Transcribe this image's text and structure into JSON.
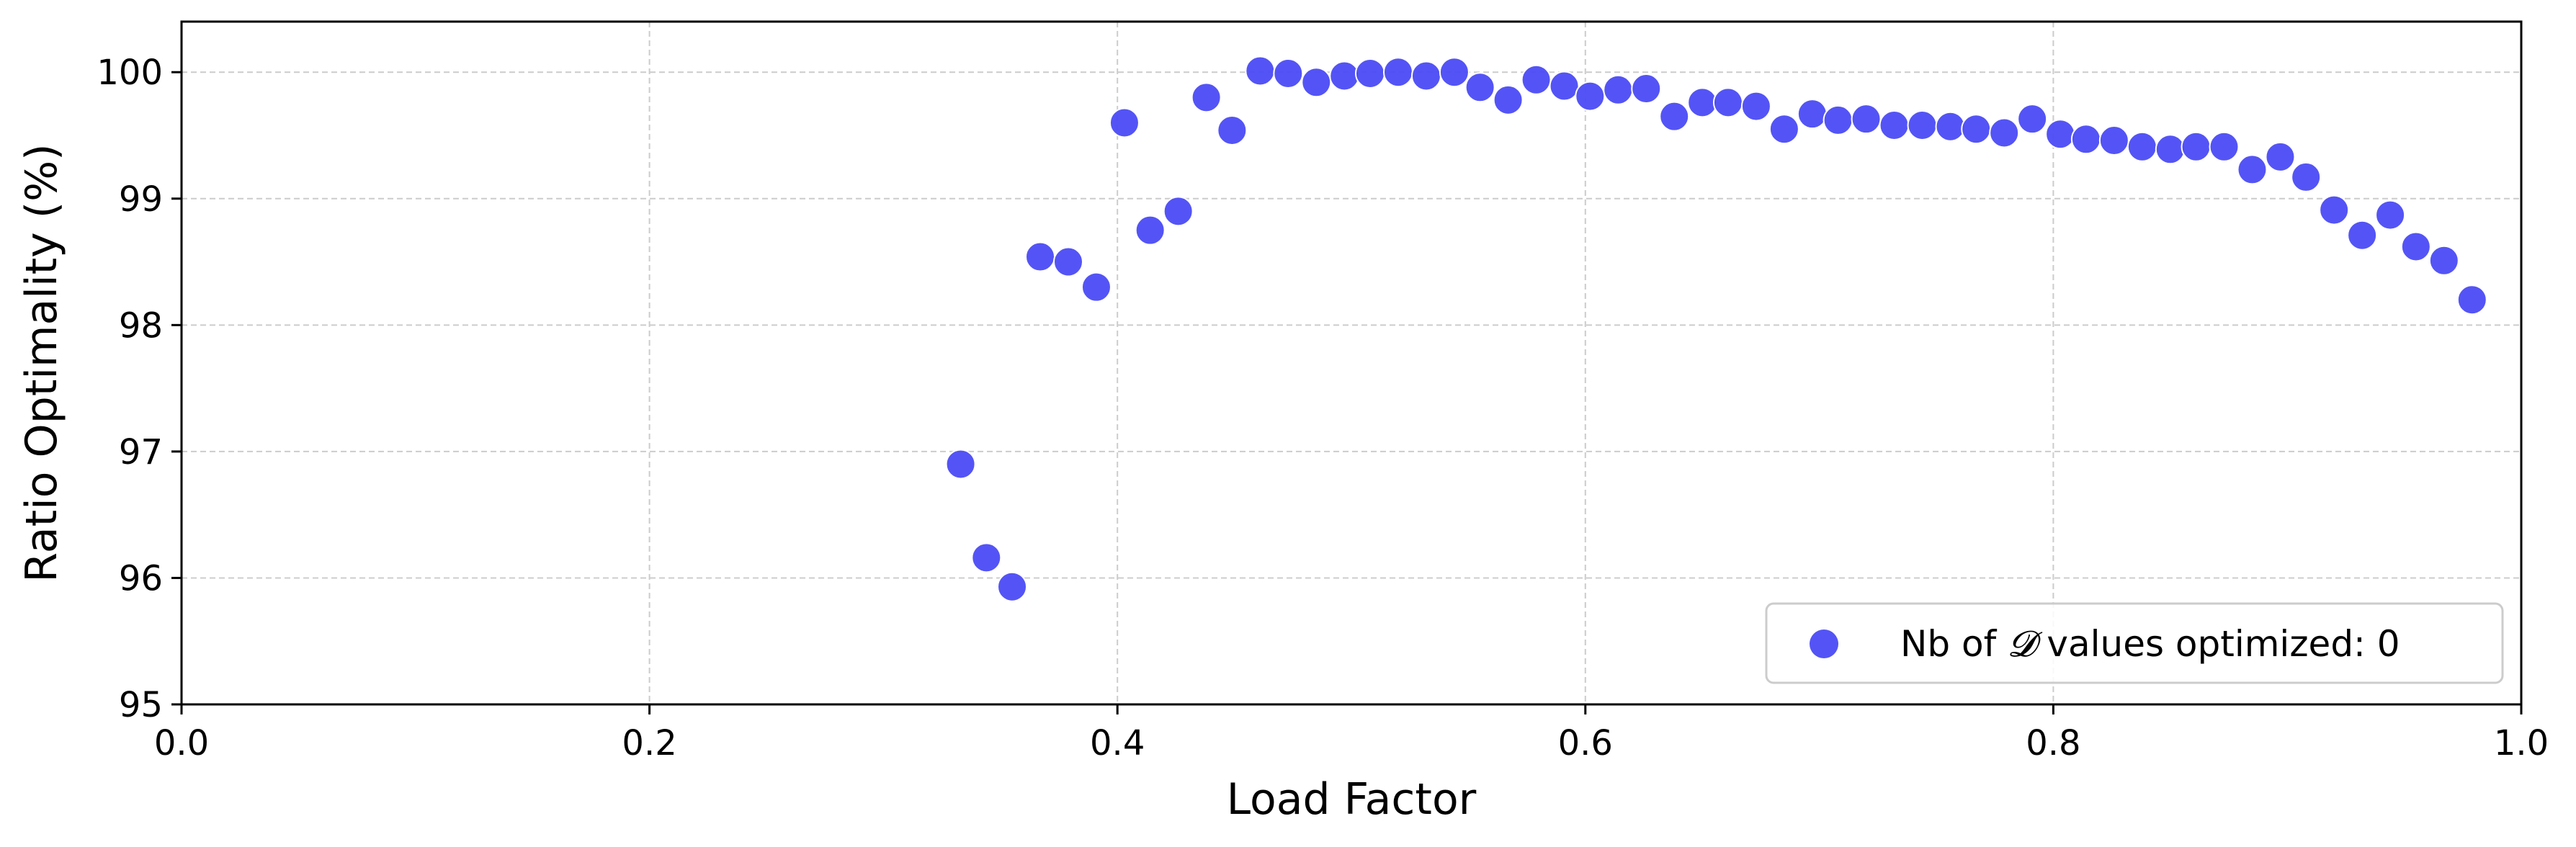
{
  "chart_data": {
    "type": "scatter",
    "xlabel": "Load Factor",
    "ylabel": "Ratio Optimality (%)",
    "xlim": [
      0.0,
      1.0
    ],
    "ylim": [
      95,
      100.4
    ],
    "xticks": [
      "0.0",
      "0.2",
      "0.4",
      "0.6",
      "0.8",
      "1.0"
    ],
    "yticks": [
      "95",
      "96",
      "97",
      "98",
      "99",
      "100"
    ],
    "grid": true,
    "legend_position": "lower-right",
    "colors": {
      "points": "#4b4bf5",
      "grid": "#cccccc",
      "axes": "#000000"
    },
    "legend": {
      "prefix": "Nb of ",
      "symbol": "𝓓",
      "suffix": " values optimized: 0"
    },
    "series": [
      {
        "name": "Nb of 𝓓 values optimized: 0",
        "x": [
          0.333,
          0.344,
          0.355,
          0.367,
          0.379,
          0.391,
          0.403,
          0.414,
          0.426,
          0.438,
          0.449,
          0.461,
          0.473,
          0.485,
          0.497,
          0.508,
          0.52,
          0.532,
          0.544,
          0.555,
          0.567,
          0.579,
          0.591,
          0.602,
          0.614,
          0.626,
          0.638,
          0.65,
          0.661,
          0.673,
          0.685,
          0.697,
          0.708,
          0.72,
          0.732,
          0.744,
          0.756,
          0.767,
          0.779,
          0.791,
          0.803,
          0.814,
          0.826,
          0.838,
          0.85,
          0.861,
          0.873,
          0.885,
          0.897,
          0.908,
          0.92,
          0.932,
          0.944,
          0.955,
          0.967,
          0.979
        ],
        "y": [
          96.9,
          96.16,
          95.93,
          98.54,
          98.5,
          98.3,
          99.6,
          98.75,
          98.9,
          99.8,
          99.54,
          100.01,
          99.99,
          99.92,
          99.97,
          99.99,
          100.0,
          99.97,
          100.0,
          99.88,
          99.78,
          99.94,
          99.89,
          99.81,
          99.86,
          99.87,
          99.65,
          99.76,
          99.76,
          99.73,
          99.55,
          99.67,
          99.62,
          99.63,
          99.58,
          99.58,
          99.57,
          99.55,
          99.52,
          99.63,
          99.51,
          99.47,
          99.46,
          99.41,
          99.39,
          99.41,
          99.41,
          99.23,
          99.33,
          99.17,
          98.91,
          98.71,
          98.87,
          98.62,
          98.51,
          98.2
        ]
      }
    ]
  }
}
